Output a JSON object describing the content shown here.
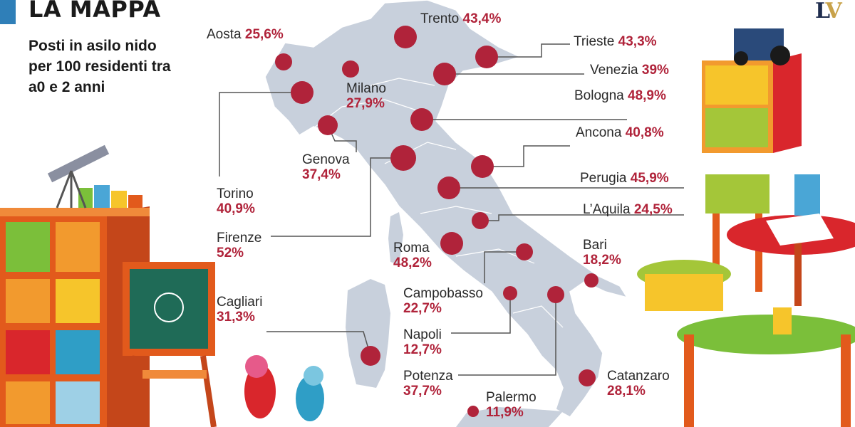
{
  "header": {
    "title": "LA MAPPA",
    "subtitle": "Posti in asilo nido per 100 residenti tra a0 e 2 anni"
  },
  "logo": {
    "letter_l": "L",
    "letter_v": "V"
  },
  "colors": {
    "dot": "#b0233a",
    "map": "#c8d0dc",
    "accent": "#2f7fb8",
    "leader": "#555555"
  },
  "cities": [
    {
      "id": "aosta",
      "name": "Aosta",
      "value": "25,6%"
    },
    {
      "id": "trento",
      "name": "Trento",
      "value": "43,4%"
    },
    {
      "id": "trieste",
      "name": "Trieste",
      "value": "43,3%"
    },
    {
      "id": "venezia",
      "name": "Venezia",
      "value": "39%"
    },
    {
      "id": "milano",
      "name": "Milano",
      "value": "27,9%"
    },
    {
      "id": "bologna",
      "name": "Bologna",
      "value": "48,9%"
    },
    {
      "id": "ancona",
      "name": "Ancona",
      "value": "40,8%"
    },
    {
      "id": "genova",
      "name": "Genova",
      "value": "37,4%"
    },
    {
      "id": "torino",
      "name": "Torino",
      "value": "40,9%"
    },
    {
      "id": "perugia",
      "name": "Perugia",
      "value": "45,9%"
    },
    {
      "id": "laquila",
      "name": "L’Aquila",
      "value": "24,5%"
    },
    {
      "id": "firenze",
      "name": "Firenze",
      "value": "52%"
    },
    {
      "id": "roma",
      "name": "Roma",
      "value": "48,2%"
    },
    {
      "id": "bari",
      "name": "Bari",
      "value": "18,2%"
    },
    {
      "id": "campobasso",
      "name": "Campobasso",
      "value": "22,7%"
    },
    {
      "id": "cagliari",
      "name": "Cagliari",
      "value": "31,3%"
    },
    {
      "id": "napoli",
      "name": "Napoli",
      "value": "12,7%"
    },
    {
      "id": "potenza",
      "name": "Potenza",
      "value": "37,7%"
    },
    {
      "id": "catanzaro",
      "name": "Catanzaro",
      "value": "28,1%"
    },
    {
      "id": "palermo",
      "name": "Palermo",
      "value": "11,9%"
    }
  ]
}
